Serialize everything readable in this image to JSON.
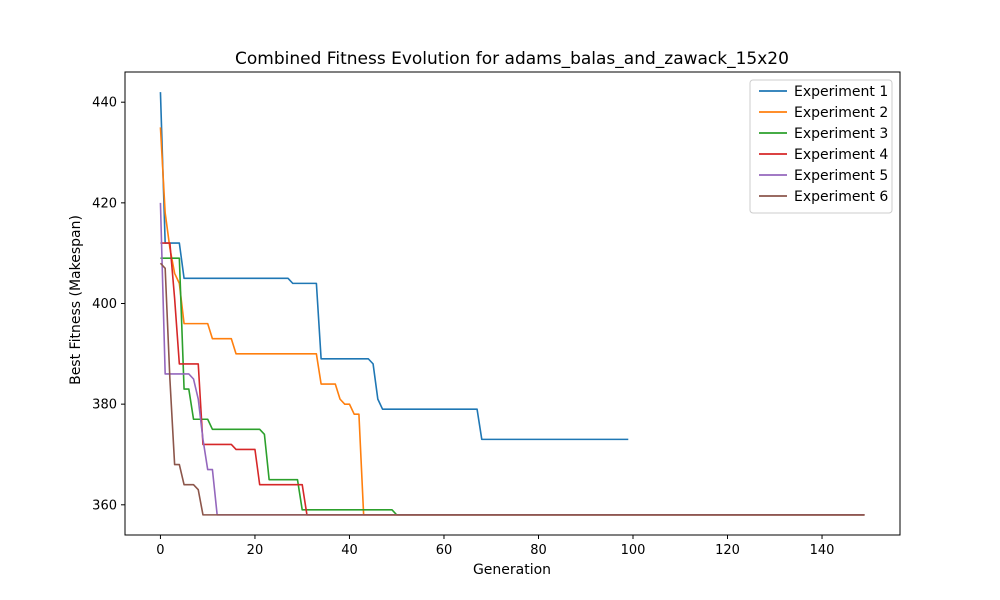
{
  "chart_data": {
    "type": "line",
    "title": "Combined Fitness Evolution for adams_balas_and_zawack_15x20",
    "xlabel": "Generation",
    "ylabel": "Best Fitness (Makespan)",
    "xlim": [
      -7.5,
      156.5
    ],
    "ylim": [
      354,
      446
    ],
    "xticks": [
      0,
      20,
      40,
      60,
      80,
      100,
      120,
      140
    ],
    "yticks": [
      360,
      380,
      400,
      420,
      440
    ],
    "grid": false,
    "legend_position": "top-right",
    "series": [
      {
        "name": "Experiment 1",
        "color": "#1f77b4",
        "points": [
          [
            0,
            442
          ],
          [
            1,
            412
          ],
          [
            4,
            412
          ],
          [
            5,
            405
          ],
          [
            27,
            405
          ],
          [
            28,
            404
          ],
          [
            33,
            404
          ],
          [
            34,
            389
          ],
          [
            44,
            389
          ],
          [
            45,
            388
          ],
          [
            46,
            381
          ],
          [
            47,
            379
          ],
          [
            67,
            379
          ],
          [
            68,
            373
          ],
          [
            99,
            373
          ]
        ]
      },
      {
        "name": "Experiment 2",
        "color": "#ff7f0e",
        "points": [
          [
            0,
            435
          ],
          [
            1,
            418
          ],
          [
            2,
            411
          ],
          [
            3,
            406
          ],
          [
            4,
            404
          ],
          [
            5,
            396
          ],
          [
            10,
            396
          ],
          [
            11,
            393
          ],
          [
            15,
            393
          ],
          [
            16,
            390
          ],
          [
            33,
            390
          ],
          [
            34,
            384
          ],
          [
            37,
            384
          ],
          [
            38,
            381
          ],
          [
            39,
            380
          ],
          [
            40,
            380
          ],
          [
            41,
            378
          ],
          [
            42,
            378
          ],
          [
            43,
            358
          ],
          [
            149,
            358
          ]
        ]
      },
      {
        "name": "Experiment 3",
        "color": "#2ca02c",
        "points": [
          [
            0,
            409
          ],
          [
            4,
            409
          ],
          [
            5,
            383
          ],
          [
            6,
            383
          ],
          [
            7,
            377
          ],
          [
            10,
            377
          ],
          [
            11,
            375
          ],
          [
            21,
            375
          ],
          [
            22,
            374
          ],
          [
            23,
            365
          ],
          [
            29,
            365
          ],
          [
            30,
            359
          ],
          [
            49,
            359
          ],
          [
            50,
            358
          ],
          [
            149,
            358
          ]
        ]
      },
      {
        "name": "Experiment 4",
        "color": "#d62728",
        "points": [
          [
            0,
            412
          ],
          [
            2,
            412
          ],
          [
            3,
            401
          ],
          [
            4,
            388
          ],
          [
            8,
            388
          ],
          [
            9,
            372
          ],
          [
            15,
            372
          ],
          [
            16,
            371
          ],
          [
            20,
            371
          ],
          [
            21,
            364
          ],
          [
            30,
            364
          ],
          [
            31,
            358
          ],
          [
            149,
            358
          ]
        ]
      },
      {
        "name": "Experiment 5",
        "color": "#9467bd",
        "points": [
          [
            0,
            420
          ],
          [
            1,
            386
          ],
          [
            6,
            386
          ],
          [
            7,
            385
          ],
          [
            8,
            381
          ],
          [
            9,
            373
          ],
          [
            10,
            367
          ],
          [
            11,
            367
          ],
          [
            12,
            358
          ],
          [
            149,
            358
          ]
        ]
      },
      {
        "name": "Experiment 6",
        "color": "#8c564b",
        "points": [
          [
            0,
            408
          ],
          [
            1,
            407
          ],
          [
            2,
            385
          ],
          [
            3,
            368
          ],
          [
            4,
            368
          ],
          [
            5,
            364
          ],
          [
            7,
            364
          ],
          [
            8,
            363
          ],
          [
            9,
            358
          ],
          [
            149,
            358
          ]
        ]
      }
    ]
  }
}
